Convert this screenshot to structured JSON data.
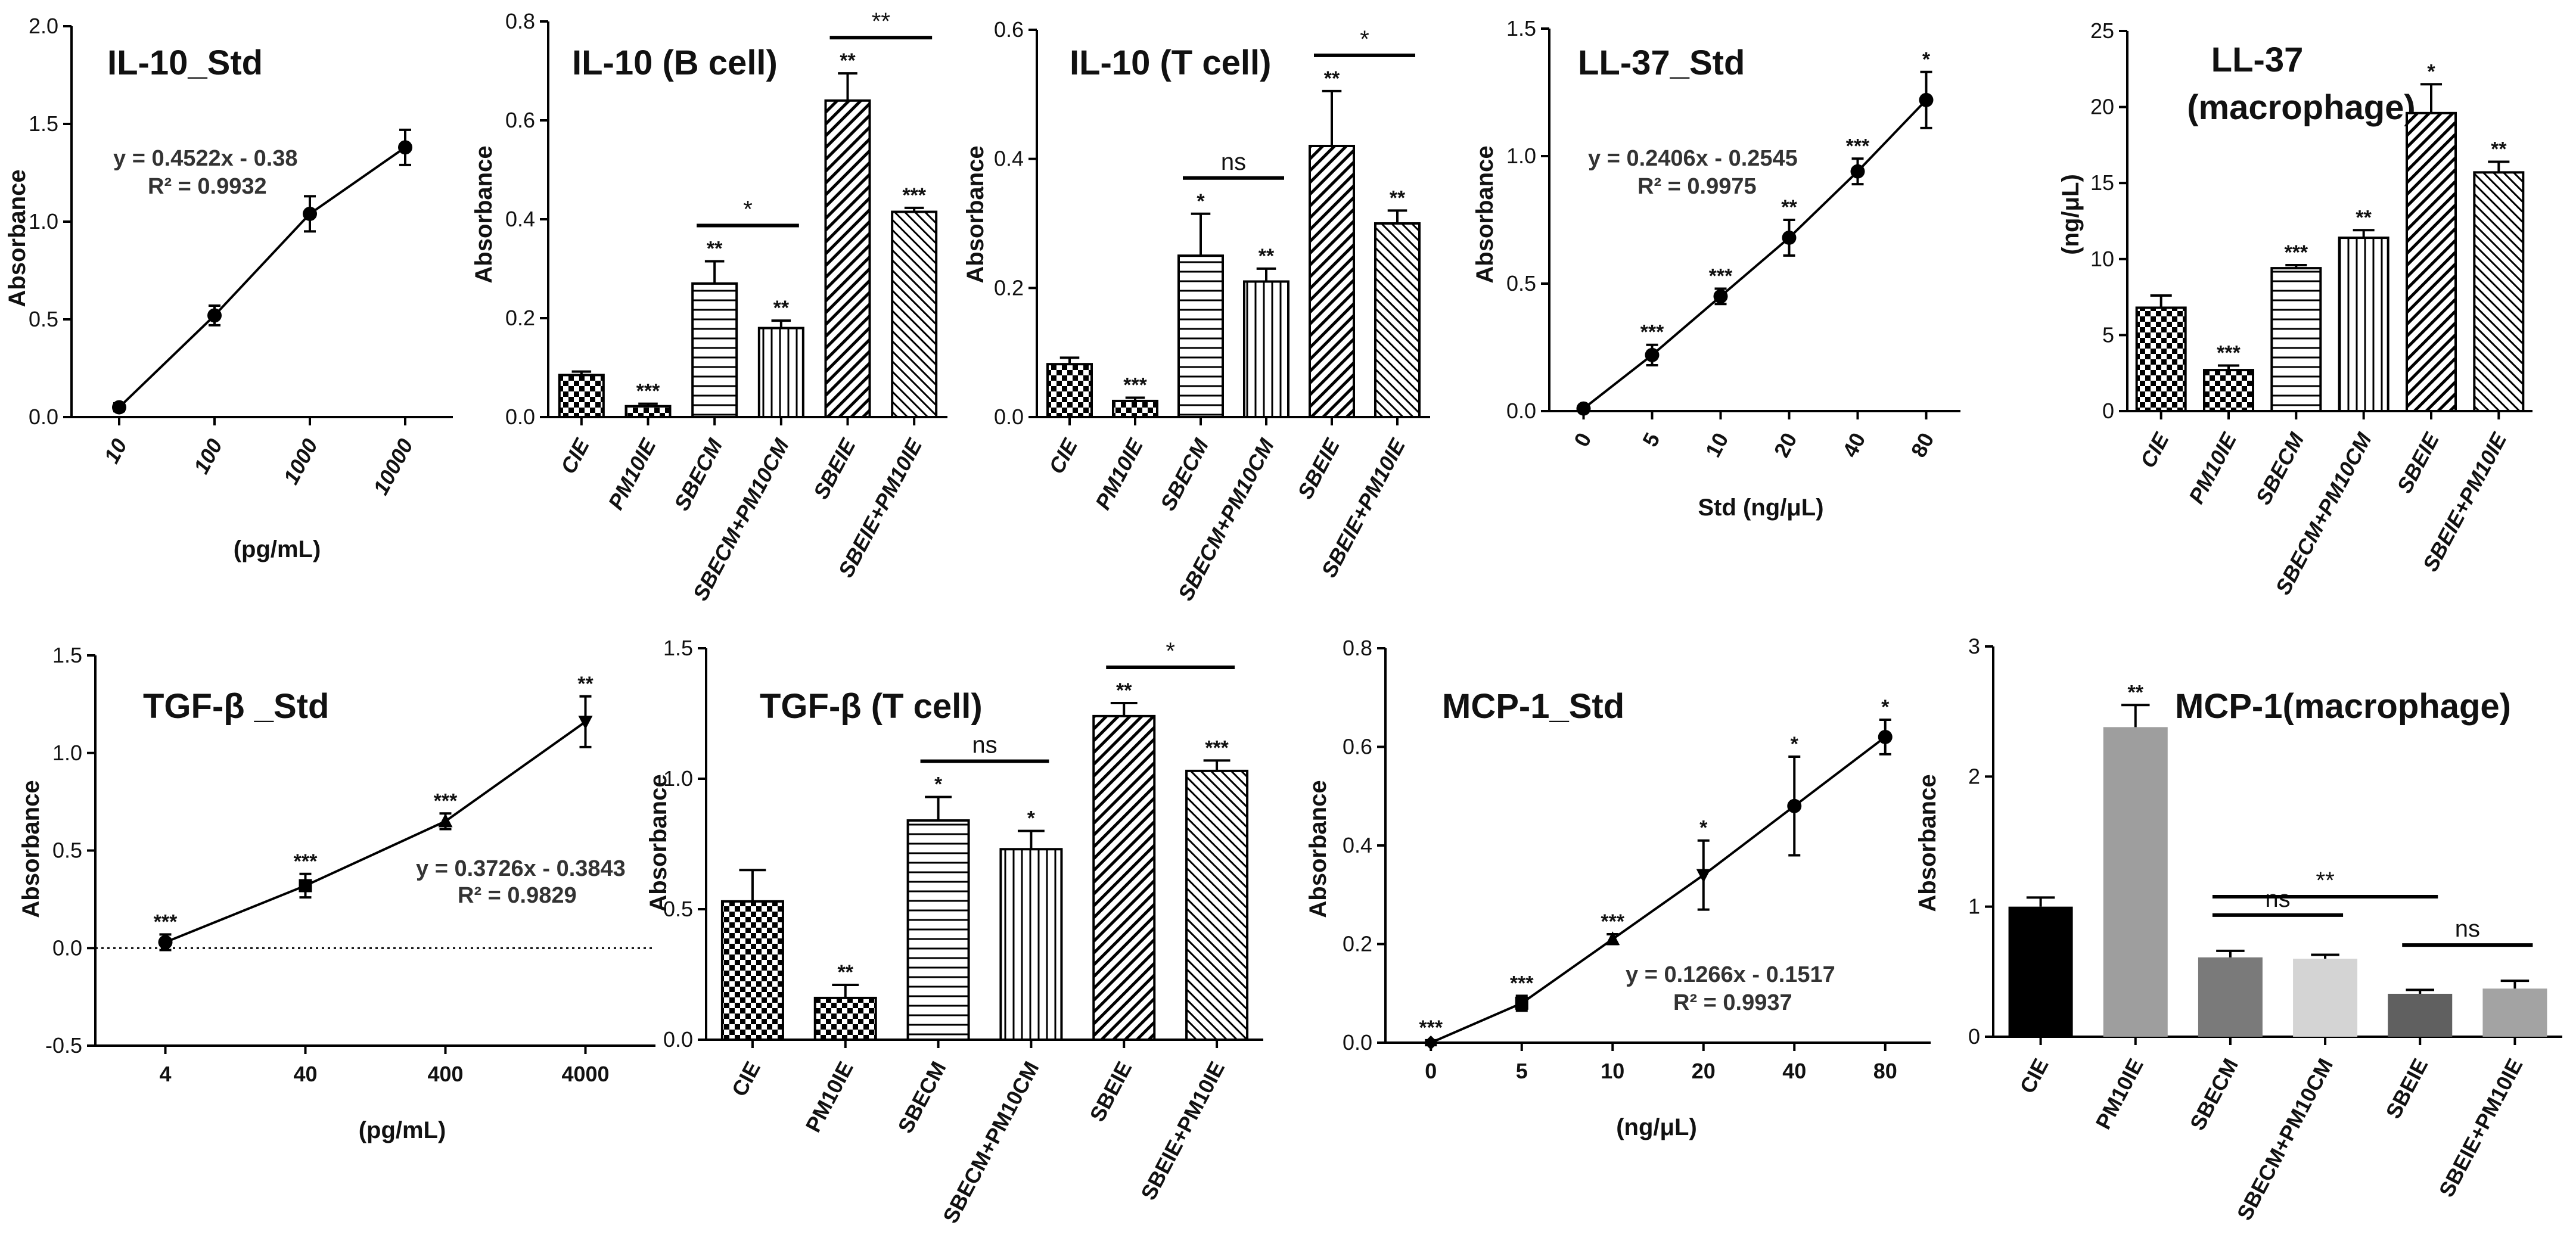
{
  "chart_data": [
    {
      "id": "il10std",
      "type": "line",
      "title": "IL-10_Std",
      "xlabel": "(pg/mL)",
      "ylabel": "Absorbance",
      "x_scale": "category",
      "x_italic": true,
      "x_rotate": true,
      "categories": [
        "10",
        "100",
        "1000",
        "10000"
      ],
      "values": [
        0.05,
        0.52,
        1.04,
        1.38
      ],
      "errors": [
        0.02,
        0.05,
        0.09,
        0.09
      ],
      "marker": "circle",
      "ylim": [
        0,
        2.0
      ],
      "yticks": [
        0,
        0.5,
        1.0,
        1.5,
        2.0
      ],
      "ytick_labels": [
        "0.0",
        "0.5",
        "1.0",
        "1.5",
        "2.0"
      ],
      "equation": "y = 0.4522x - 0.38",
      "r2": "R² = 0.9932",
      "stars": [
        "",
        "",
        "",
        ""
      ]
    },
    {
      "id": "il10b",
      "type": "bar",
      "title": "IL-10 (B cell)",
      "ylabel": "Absorbance",
      "x_italic": true,
      "categories": [
        "CIE",
        "PM10IE",
        "SBECM",
        "SBECM+PM10CM",
        "SBEIE",
        "SBEIE+PM10IE"
      ],
      "values": [
        0.085,
        0.022,
        0.27,
        0.18,
        0.64,
        0.415
      ],
      "errors": [
        0.007,
        0.005,
        0.045,
        0.015,
        0.055,
        0.008
      ],
      "patterns": [
        "checker",
        "checker",
        "hlines",
        "vlines",
        "diag",
        "diag2"
      ],
      "stars": [
        "",
        "***",
        "**",
        "**",
        "**",
        "***"
      ],
      "ylim": [
        0,
        0.8
      ],
      "yticks": [
        0,
        0.2,
        0.4,
        0.6,
        0.8
      ],
      "ytick_labels": [
        "0.0",
        "0.2",
        "0.4",
        "0.6",
        "0.8"
      ],
      "brackets": [
        {
          "from": 2,
          "to": 3,
          "label": "*"
        },
        {
          "from": 4,
          "to": 5,
          "label": "**"
        }
      ]
    },
    {
      "id": "il10t",
      "type": "bar",
      "title": "IL-10 (T cell)",
      "ylabel": "Absorbance",
      "x_italic": true,
      "categories": [
        "CIE",
        "PM10IE",
        "SBECM",
        "SBECM+PM10CM",
        "SBEIE",
        "SBEIE+PM10IE"
      ],
      "values": [
        0.082,
        0.025,
        0.25,
        0.21,
        0.42,
        0.3
      ],
      "errors": [
        0.01,
        0.005,
        0.065,
        0.02,
        0.085,
        0.02
      ],
      "patterns": [
        "checker",
        "checker",
        "hlines",
        "vlines",
        "diag",
        "diag2"
      ],
      "stars": [
        "",
        "***",
        "*",
        "**",
        "**",
        "**"
      ],
      "ylim": [
        0,
        0.6
      ],
      "yticks": [
        0,
        0.2,
        0.4,
        0.6
      ],
      "ytick_labels": [
        "0.0",
        "0.2",
        "0.4",
        "0.6"
      ],
      "brackets": [
        {
          "from": 2,
          "to": 3,
          "label": "ns"
        },
        {
          "from": 4,
          "to": 5,
          "label": "*"
        }
      ]
    },
    {
      "id": "ll37std",
      "type": "line",
      "title": "LL-37_Std",
      "xlabel": "Std (ng/μL)",
      "ylabel": "Absorbance",
      "x_scale": "category",
      "x_italic": false,
      "x_rotate": true,
      "categories": [
        "0",
        "5",
        "10",
        "20",
        "40",
        "80"
      ],
      "values": [
        0.01,
        0.22,
        0.45,
        0.68,
        0.94,
        1.22
      ],
      "errors": [
        0.01,
        0.04,
        0.03,
        0.07,
        0.05,
        0.11
      ],
      "marker": "circle",
      "ylim": [
        0,
        1.5
      ],
      "yticks": [
        0,
        0.5,
        1.0,
        1.5
      ],
      "ytick_labels": [
        "0.0",
        "0.5",
        "1.0",
        "1.5"
      ],
      "equation": "y = 0.2406x - 0.2545",
      "r2": "R² = 0.9975",
      "stars": [
        "",
        "***",
        "***",
        "**",
        "***",
        "*"
      ]
    },
    {
      "id": "ll37mac",
      "type": "bar",
      "title": "LL-37",
      "title2": "(macrophage)",
      "ylabel": "(ng/μL)",
      "x_italic": true,
      "categories": [
        "CIE",
        "PM10IE",
        "SBECM",
        "SBECM+PM10CM",
        "SBEIE",
        "SBEIE+PM10IE"
      ],
      "values": [
        6.8,
        2.7,
        9.4,
        11.4,
        19.6,
        15.7
      ],
      "errors": [
        0.8,
        0.3,
        0.2,
        0.5,
        1.9,
        0.7
      ],
      "patterns": [
        "checker",
        "checker",
        "hlines",
        "vlines",
        "diag",
        "diag2"
      ],
      "stars": [
        "",
        "***",
        "***",
        "**",
        "*",
        "**"
      ],
      "ylim": [
        0,
        25
      ],
      "yticks": [
        0,
        5,
        10,
        15,
        20,
        25
      ],
      "ytick_labels": [
        "0",
        "5",
        "10",
        "15",
        "20",
        "25"
      ],
      "brackets": []
    },
    {
      "id": "tgfstd",
      "type": "line",
      "title": "TGF-β _Std",
      "xlabel": "(pg/mL)",
      "ylabel": "Absorbance",
      "x_scale": "category",
      "x_italic": false,
      "x_rotate": false,
      "categories": [
        "4",
        "40",
        "400",
        "4000"
      ],
      "values": [
        0.03,
        0.32,
        0.65,
        1.16
      ],
      "errors": [
        0.04,
        0.06,
        0.04,
        0.13
      ],
      "marker": "mixed",
      "ylim": [
        -0.5,
        1.5
      ],
      "yticks": [
        -0.5,
        0,
        0.5,
        1.0,
        1.5
      ],
      "ytick_labels": [
        "-0.5",
        "0.0",
        "0.5",
        "1.0",
        "1.5"
      ],
      "equation": "y = 0.3726x - 0.3843",
      "r2": "R² = 0.9829",
      "stars": [
        "***",
        "***",
        "***",
        "**"
      ],
      "zero_line": true
    },
    {
      "id": "tgft",
      "type": "bar",
      "title": "TGF-β (T cell)",
      "ylabel": "Absorbance",
      "x_italic": false,
      "categories": [
        "CIE",
        "PM10IE",
        "SBECM",
        "SBECM+PM10CM",
        "SBEIE",
        "SBEIE+PM10IE"
      ],
      "values": [
        0.53,
        0.16,
        0.84,
        0.73,
        1.24,
        1.03
      ],
      "errors": [
        0.12,
        0.05,
        0.09,
        0.07,
        0.05,
        0.04
      ],
      "patterns": [
        "checker",
        "checker",
        "hlines",
        "vlines",
        "diag",
        "diag2"
      ],
      "stars": [
        "",
        "**",
        "*",
        "*",
        "**",
        "***"
      ],
      "ylim": [
        0,
        1.5
      ],
      "yticks": [
        0,
        0.5,
        1.0,
        1.5
      ],
      "ytick_labels": [
        "0.0",
        "0.5",
        "1.0",
        "1.5"
      ],
      "brackets": [
        {
          "from": 2,
          "to": 3,
          "label": "ns"
        },
        {
          "from": 4,
          "to": 5,
          "label": "*"
        }
      ]
    },
    {
      "id": "mcp1std",
      "type": "line",
      "title": "MCP-1_Std",
      "xlabel": "(ng/μL)",
      "ylabel": "Absorbance",
      "x_scale": "category",
      "x_italic": false,
      "x_rotate": false,
      "categories": [
        "0",
        "5",
        "10",
        "20",
        "40",
        "80"
      ],
      "values": [
        0.0,
        0.08,
        0.21,
        0.34,
        0.48,
        0.62
      ],
      "errors": [
        0.005,
        0.015,
        0.01,
        0.07,
        0.1,
        0.035
      ],
      "marker": "mixed2",
      "ylim": [
        0,
        0.8
      ],
      "yticks": [
        0,
        0.2,
        0.4,
        0.6,
        0.8
      ],
      "ytick_labels": [
        "0.0",
        "0.2",
        "0.4",
        "0.6",
        "0.8"
      ],
      "equation": "y = 0.1266x - 0.1517",
      "r2": "R² = 0.9937",
      "stars": [
        "***",
        "***",
        "***",
        "*",
        "*",
        "*"
      ]
    },
    {
      "id": "mcp1mac",
      "type": "bar",
      "title": "MCP-1(macrophage)",
      "ylabel": "Absorbance",
      "x_italic": false,
      "categories": [
        "CIE",
        "PM10IE",
        "SBECM",
        "SBECM+PM10CM",
        "SBEIE",
        "SBEIE+PM10IE"
      ],
      "values": [
        1.0,
        2.38,
        0.61,
        0.6,
        0.33,
        0.37
      ],
      "errors": [
        0.07,
        0.17,
        0.05,
        0.03,
        0.03,
        0.06
      ],
      "colors": [
        "#000000",
        "#9e9e9e",
        "#7a7a7a",
        "#d4d4d4",
        "#606060",
        "#a3a3a3"
      ],
      "stars": [
        "",
        "**",
        "",
        "",
        "",
        ""
      ],
      "ylim": [
        0,
        3
      ],
      "yticks": [
        0,
        1,
        2,
        3
      ],
      "ytick_labels": [
        "0",
        "1",
        "2",
        "3"
      ],
      "brackets": [
        {
          "from": 2,
          "to": 3,
          "label": "ns"
        },
        {
          "from": 4,
          "to": 5,
          "label": "ns"
        },
        {
          "from": 2,
          "to": 4,
          "label": "**"
        }
      ]
    }
  ]
}
